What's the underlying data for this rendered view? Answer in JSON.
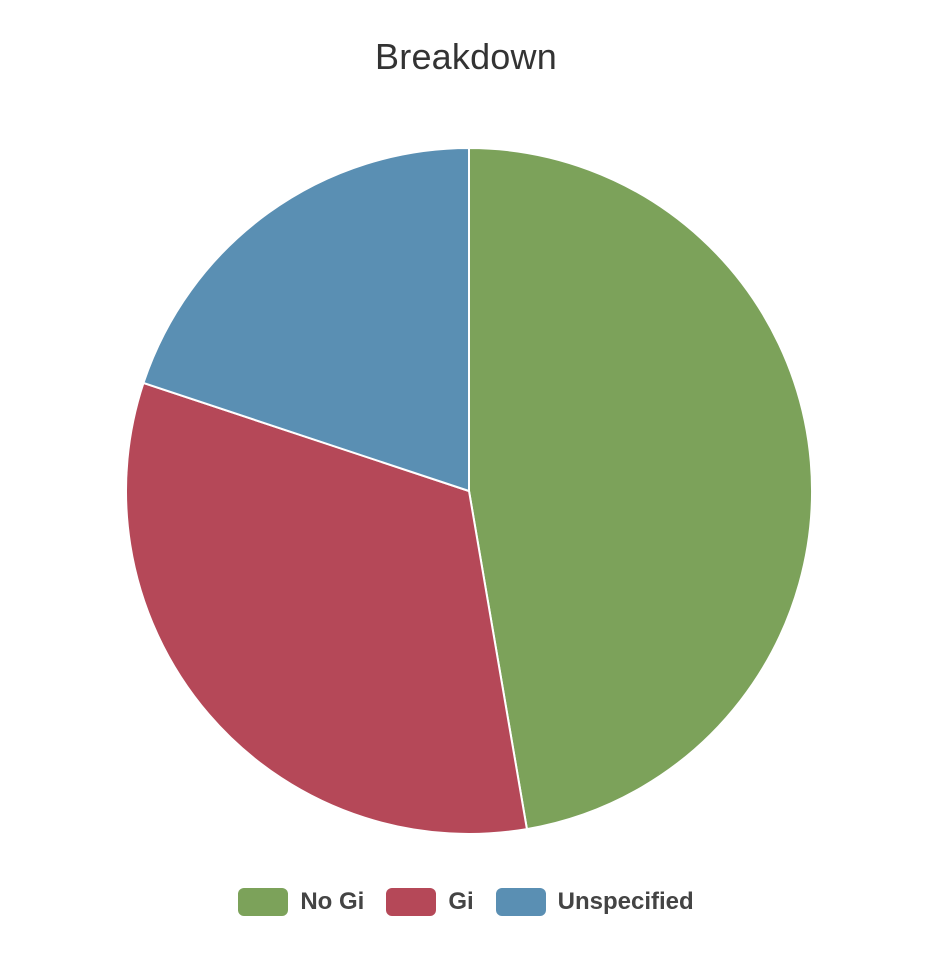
{
  "chart_data": {
    "type": "pie",
    "title": "Breakdown",
    "legend_position": "bottom",
    "slices": [
      {
        "label": "No Gi",
        "value": 47.3,
        "color": "#7CA25A"
      },
      {
        "label": "Gi",
        "value": 32.8,
        "color": "#B54858"
      },
      {
        "label": "Unspecified",
        "value": 19.9,
        "color": "#5A8FB3"
      }
    ]
  }
}
